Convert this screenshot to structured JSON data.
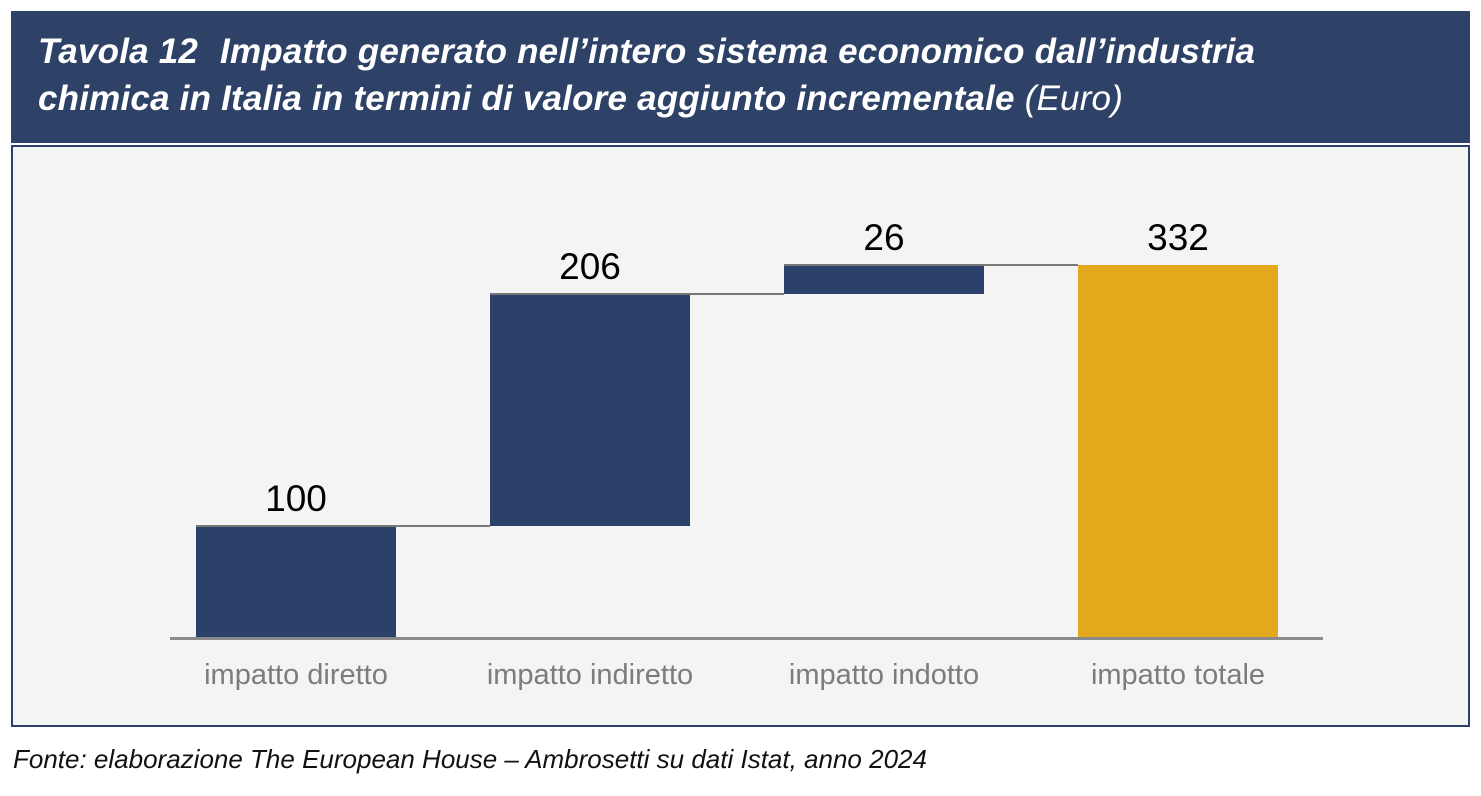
{
  "header": {
    "label": "Tavola 12",
    "title_line1": "Impatto generato nell’intero sistema economico dall’industria",
    "title_line2": "chimica in Italia in termini di valore aggiunto incrementale",
    "title_suffix": "(Euro)"
  },
  "colors": {
    "header_band": "#2d4266",
    "increment_bar": "#2b406a",
    "total_bar": "#e3a81c",
    "panel_background": "#f4f4f5",
    "axis": "#8a8a8a",
    "category_label": "#7c7c7c"
  },
  "chart_data": {
    "type": "bar",
    "subtype": "waterfall",
    "title": "Tavola 12 — Impatto generato nell’intero sistema economico dall’industria chimica in Italia in termini di valore aggiunto incrementale (Euro)",
    "categories": [
      "impatto diretto",
      "impatto indiretto",
      "impatto indotto",
      "impatto totale"
    ],
    "values": [
      100,
      206,
      26,
      332
    ],
    "value_labels": [
      "100",
      "206",
      "26",
      "332"
    ],
    "segment_starts": [
      0,
      100,
      306,
      0
    ],
    "cumulative_levels": [
      100,
      306,
      332,
      332
    ],
    "bar_roles": [
      "increment",
      "increment",
      "increment",
      "total"
    ],
    "series_colors": {
      "increment": "#2b406a",
      "total": "#e3a81c"
    },
    "xlabel": "",
    "ylabel": "",
    "ylim": [
      0,
      340
    ],
    "gridlines": false,
    "legend": "none",
    "connector_lines": true
  },
  "footer": {
    "source": "Fonte: elaborazione The European House – Ambrosetti su dati Istat, anno 2024"
  }
}
